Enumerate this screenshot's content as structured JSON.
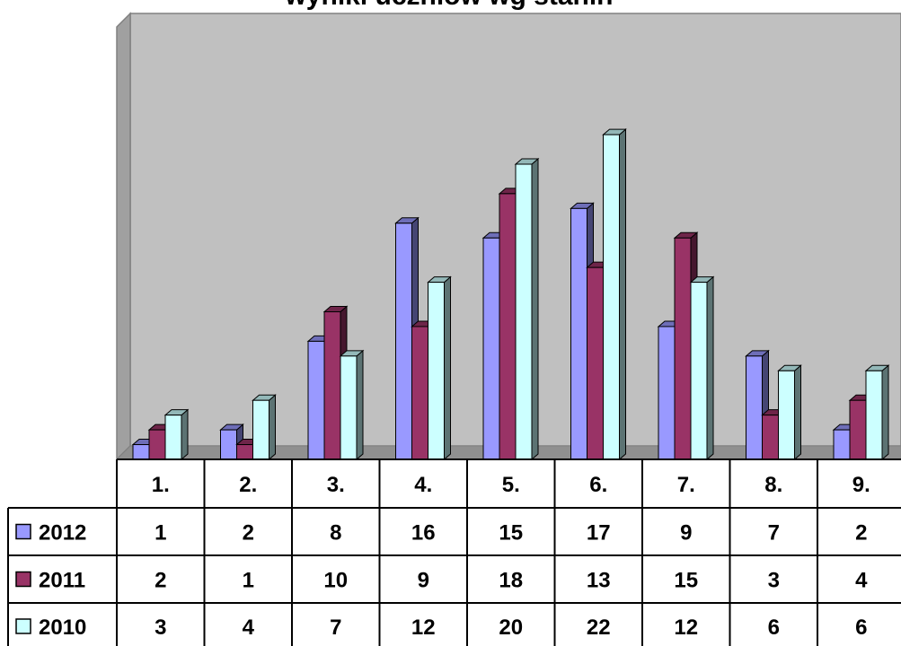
{
  "chart_data": {
    "type": "bar",
    "title": "wyniki uczniów wg stanin",
    "categories": [
      "1.",
      "2.",
      "3.",
      "4.",
      "5.",
      "6.",
      "7.",
      "8.",
      "9."
    ],
    "series": [
      {
        "name": "2012",
        "values": [
          1,
          2,
          8,
          16,
          15,
          17,
          9,
          7,
          2
        ],
        "color": "#9999ff"
      },
      {
        "name": "2011",
        "values": [
          2,
          1,
          10,
          9,
          18,
          13,
          15,
          3,
          4
        ],
        "color": "#993366"
      },
      {
        "name": "2010",
        "values": [
          3,
          4,
          7,
          12,
          20,
          22,
          12,
          6,
          6
        ],
        "color": "#ccffff"
      }
    ],
    "ylim": [
      0,
      22
    ],
    "grid": false,
    "legend": "data-table",
    "plot_background": "#c0c0c0"
  }
}
